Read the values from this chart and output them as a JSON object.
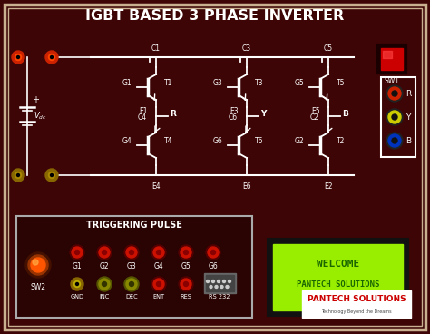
{
  "bg_color": "#3d0505",
  "board_color": "#3d0505",
  "border_outer": "#c8b090",
  "border_inner": "#c8b090",
  "title": "IGBT BASED 3 PHASE INVERTER",
  "title_color": "white",
  "title_fontsize": 11.5,
  "lcd_bg": "#99ee00",
  "lcd_text1": "WELCOME",
  "lcd_text2": "PANTECH SOLUTIONS",
  "lcd_text_color": "#1a6600",
  "trigger_label": "TRIGGERING PULSE",
  "sw1_color": "#cc0000",
  "gate_row_labels": [
    "G1",
    "G2",
    "G3",
    "G4",
    "G5",
    "G6"
  ],
  "bottom_labels": [
    "GND",
    "INC",
    "DEC",
    "ENT",
    "RES",
    "RS 232"
  ],
  "pantech_logo": "PANTECH SOLUTIONS",
  "pantech_sub": "Technology Beyond the Dreams",
  "igbt_labels_top": [
    "C1",
    "C3",
    "C5"
  ],
  "igbt_labels_bot": [
    "C4",
    "C6",
    "C2"
  ],
  "transistor_top": [
    "T1",
    "T3",
    "T5"
  ],
  "transistor_bot": [
    "T4",
    "T6",
    "T2"
  ],
  "gate_top": [
    "G1",
    "G3",
    "G5"
  ],
  "gate_bot": [
    "G4",
    "G6",
    "G2"
  ],
  "emitter_top": [
    "E1",
    "E3",
    "E5"
  ],
  "emitter_bot": [
    "E4",
    "E6",
    "E2"
  ],
  "phases": [
    "R",
    "Y",
    "B"
  ],
  "phase_colors": [
    "#cc2200",
    "#cccc00",
    "#0022cc"
  ]
}
